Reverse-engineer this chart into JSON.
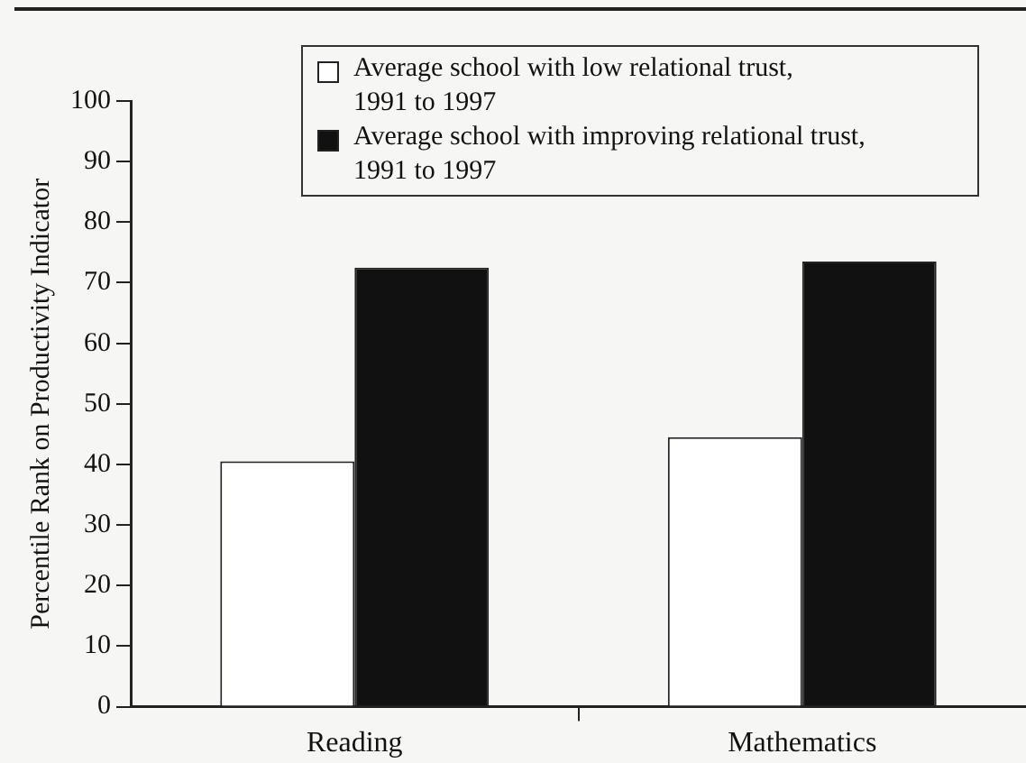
{
  "chart_data": {
    "type": "bar",
    "ylabel": "Percentile Rank on Productivity Indicator",
    "categories": [
      "Reading",
      "Mathematics"
    ],
    "series": [
      {
        "name": "Average school with low relational trust, 1991 to 1997",
        "color": "#ffffff",
        "values": [
          40.5,
          44.5
        ]
      },
      {
        "name": "Average school with improving relational trust, 1991 to 1997",
        "color": "#111111",
        "values": [
          72.5,
          73.5
        ]
      }
    ],
    "ylim": [
      0,
      100
    ],
    "yticks": [
      0,
      10,
      20,
      30,
      40,
      50,
      60,
      70,
      80,
      90,
      100
    ],
    "grid": false,
    "legend": "top right"
  }
}
